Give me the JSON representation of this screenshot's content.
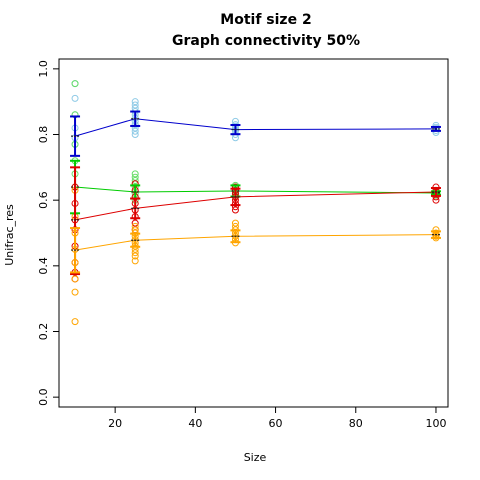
{
  "chart_data": {
    "type": "scatter",
    "title": "Motif size 2",
    "subtitle": "Graph connectivity 50%",
    "xlabel": "Size",
    "ylabel": "Unifrac_res",
    "xlim": [
      6,
      103
    ],
    "ylim": [
      -0.03,
      1.03
    ],
    "xticks": [
      20,
      40,
      60,
      80,
      100
    ],
    "yticks": [
      0.0,
      0.2,
      0.4,
      0.6,
      0.8,
      1.0
    ],
    "grid": false,
    "legend": "none",
    "x": [
      10,
      25,
      50,
      100
    ],
    "series": [
      {
        "color": "#0000cc",
        "point_color": "#8ecae6",
        "mean": [
          0.795,
          0.848,
          0.815,
          0.817
        ],
        "err_low": [
          0.735,
          0.826,
          0.801,
          0.811
        ],
        "err_high": [
          0.855,
          0.87,
          0.829,
          0.823
        ],
        "points": [
          [
            0.955,
            0.91,
            0.86,
            0.82,
            0.79,
            0.77
          ],
          [
            0.9,
            0.89,
            0.88,
            0.87,
            0.86,
            0.85,
            0.84,
            0.83,
            0.82,
            0.81,
            0.8
          ],
          [
            0.84,
            0.83,
            0.825,
            0.82,
            0.815,
            0.81,
            0.8,
            0.79
          ],
          [
            0.828,
            0.822,
            0.818,
            0.812,
            0.806
          ]
        ]
      },
      {
        "color": "#00cc00",
        "point_color": "#66dd66",
        "mean": [
          0.64,
          0.625,
          0.628,
          0.622
        ],
        "err_low": [
          0.56,
          0.605,
          0.611,
          0.617
        ],
        "err_high": [
          0.72,
          0.645,
          0.645,
          0.627
        ],
        "points": [
          [
            0.955,
            0.86,
            0.77,
            0.72,
            0.68,
            0.64
          ],
          [
            0.68,
            0.67,
            0.66,
            0.65,
            0.64,
            0.63,
            0.62,
            0.61,
            0.6
          ],
          [
            0.645,
            0.64,
            0.635,
            0.63,
            0.625,
            0.62,
            0.615,
            0.61
          ],
          [
            0.63,
            0.625,
            0.62,
            0.615
          ]
        ]
      },
      {
        "color": "#dd0000",
        "point_color": "#dd0000",
        "mean": [
          0.54,
          0.575,
          0.61,
          0.625
        ],
        "err_low": [
          0.375,
          0.545,
          0.585,
          0.613
        ],
        "err_high": [
          0.7,
          0.605,
          0.635,
          0.637
        ],
        "points": [
          [
            0.64,
            0.59,
            0.54,
            0.51,
            0.46,
            0.41,
            0.38,
            0.36
          ],
          [
            0.65,
            0.63,
            0.61,
            0.59,
            0.57,
            0.55,
            0.53,
            0.51
          ],
          [
            0.64,
            0.63,
            0.62,
            0.61,
            0.6,
            0.59,
            0.58,
            0.57
          ],
          [
            0.64,
            0.63,
            0.62,
            0.61,
            0.6
          ]
        ]
      },
      {
        "color": "#ffa500",
        "point_color": "#ffa500",
        "mean": [
          0.448,
          0.478,
          0.49,
          0.495
        ],
        "err_low": [
          0.38,
          0.458,
          0.472,
          0.485
        ],
        "err_high": [
          0.515,
          0.498,
          0.508,
          0.505
        ],
        "points": [
          [
            0.63,
            0.55,
            0.5,
            0.45,
            0.41,
            0.36,
            0.32,
            0.23
          ],
          [
            0.52,
            0.51,
            0.5,
            0.49,
            0.48,
            0.47,
            0.46,
            0.45,
            0.44,
            0.43,
            0.415
          ],
          [
            0.53,
            0.52,
            0.51,
            0.5,
            0.49,
            0.48,
            0.47
          ],
          [
            0.51,
            0.5,
            0.495,
            0.49,
            0.485
          ]
        ]
      }
    ]
  }
}
